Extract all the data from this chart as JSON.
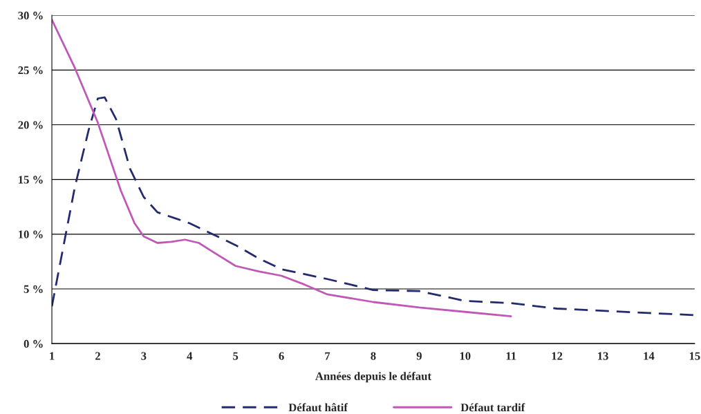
{
  "chart_data": {
    "type": "line",
    "xlabel": "Années depuis le défaut",
    "series": [
      {
        "name": "Défaut hâtif",
        "color": "#232a6e",
        "line_style": "dashed",
        "x": [
          1,
          1.5,
          1.8,
          2,
          2.15,
          2.4,
          2.7,
          3,
          3.3,
          4,
          5,
          5.5,
          6,
          7,
          8,
          9,
          10,
          11,
          12,
          13,
          14,
          15
        ],
        "values": [
          3.4,
          14.3,
          19.5,
          22.4,
          22.5,
          20.5,
          16,
          13.4,
          12.0,
          11.0,
          9.0,
          7.8,
          6.8,
          5.9,
          4.9,
          4.8,
          3.9,
          3.7,
          3.2,
          3.0,
          2.8,
          2.6
        ]
      },
      {
        "name": "Défaut tardif",
        "color": "#c058b8",
        "line_style": "solid",
        "x": [
          1,
          1.5,
          2,
          2.5,
          2.8,
          3,
          3.3,
          3.6,
          3.9,
          4.2,
          4.5,
          5,
          5.5,
          6,
          6.5,
          7,
          8,
          9,
          10,
          11
        ],
        "values": [
          29.6,
          25.2,
          20.2,
          14.0,
          11.0,
          9.8,
          9.2,
          9.3,
          9.5,
          9.2,
          8.4,
          7.1,
          6.6,
          6.2,
          5.4,
          4.5,
          3.8,
          3.3,
          2.9,
          2.5
        ]
      }
    ],
    "xlim": [
      1,
      15
    ],
    "xticks": [
      1,
      2,
      3,
      4,
      5,
      6,
      7,
      8,
      9,
      10,
      11,
      12,
      13,
      14,
      15
    ],
    "ylim": [
      0,
      30
    ],
    "yticks": [
      {
        "value": 0,
        "label": "0 %"
      },
      {
        "value": 5,
        "label": "5 %"
      },
      {
        "value": 10,
        "label": "10 %"
      },
      {
        "value": 15,
        "label": "15 %"
      },
      {
        "value": 20,
        "label": "20 %"
      },
      {
        "value": 25,
        "label": "25 %"
      },
      {
        "value": 30,
        "label": "30 %"
      }
    ],
    "grid": "y",
    "legend": "bottom",
    "marker": "none"
  }
}
